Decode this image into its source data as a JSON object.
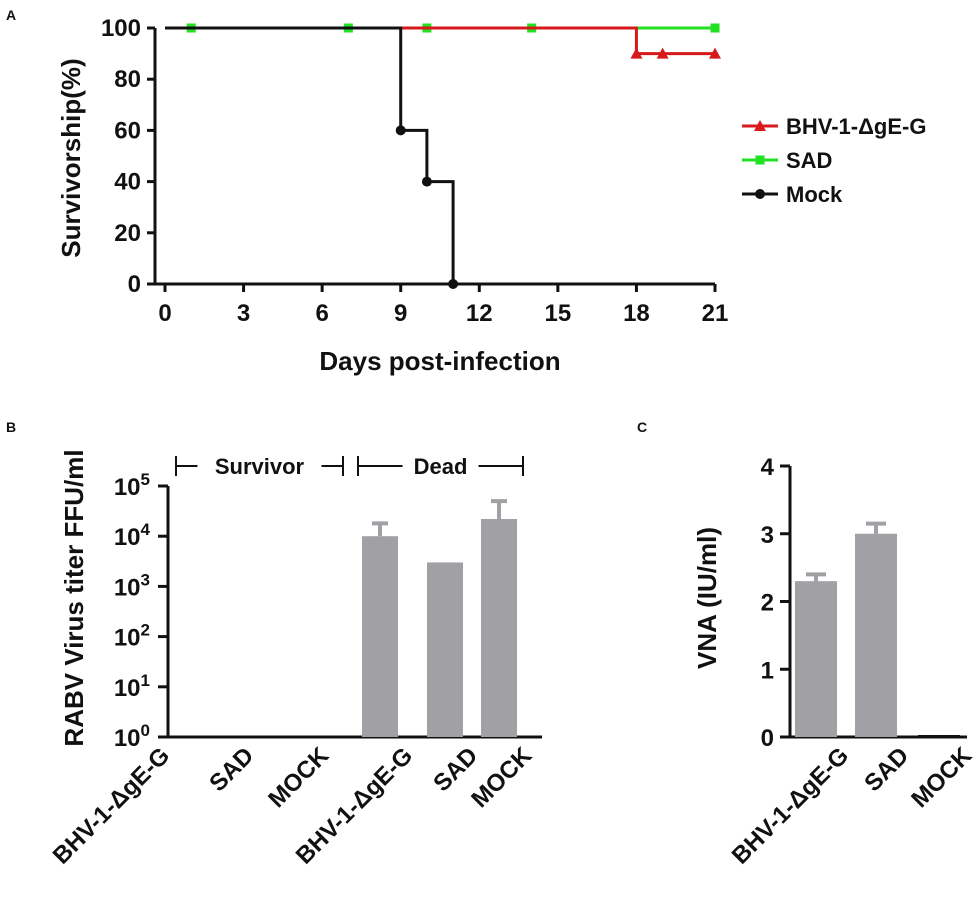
{
  "chart_data": [
    {
      "panel": "A",
      "type": "line",
      "step": true,
      "title": "",
      "xlabel": "Days post-infection",
      "ylabel": "Survivorship(%)",
      "xlim": [
        0,
        21
      ],
      "ylim": [
        0,
        100
      ],
      "xticks": [
        "0",
        "3",
        "6",
        "9",
        "12",
        "15",
        "18",
        "21"
      ],
      "yticks": [
        "0",
        "20",
        "40",
        "60",
        "80",
        "100"
      ],
      "series": [
        {
          "name": "BHV-1-ΔgE-G",
          "color": "#d7191c",
          "marker": "triangle",
          "x": [
            0,
            18,
            19,
            21
          ],
          "y": [
            100,
            90,
            90,
            90
          ]
        },
        {
          "name": "SAD",
          "color": "#22e022",
          "marker": "square",
          "x": [
            0,
            1,
            7,
            10,
            14,
            21
          ],
          "y": [
            100,
            100,
            100,
            100,
            100,
            100
          ]
        },
        {
          "name": "Mock",
          "color": "#111111",
          "marker": "circle",
          "x": [
            0,
            9,
            10,
            11
          ],
          "y": [
            100,
            60,
            40,
            0
          ]
        }
      ],
      "legend": [
        "BHV-1-ΔgE-G",
        "SAD",
        "Mock"
      ],
      "legend_position": "right"
    },
    {
      "panel": "B",
      "type": "bar",
      "scale": "log",
      "ylabel": "RABV Virus titer FFU/ml",
      "ylim": [
        1,
        100000
      ],
      "ytick_base": "10",
      "ytick_exponents": [
        "0",
        "1",
        "2",
        "3",
        "4",
        "5"
      ],
      "groups": [
        {
          "label": "Survivor",
          "categories": [
            "BHV-1-ΔgE-G",
            "SAD",
            "MOCK"
          ],
          "values": [
            null,
            null,
            null
          ],
          "errors": [
            null,
            null,
            null
          ]
        },
        {
          "label": "Dead",
          "categories": [
            "BHV-1-ΔgE-G",
            "SAD",
            "MOCK"
          ],
          "values": [
            10000,
            3000,
            22000
          ],
          "errors": [
            18000,
            null,
            50000
          ]
        }
      ],
      "bar_color": "#a0a0a5"
    },
    {
      "panel": "C",
      "type": "bar",
      "ylabel": "VNA (IU/ml)",
      "ylim": [
        0,
        4
      ],
      "yticks": [
        "0",
        "1",
        "2",
        "3",
        "4"
      ],
      "categories": [
        "BHV-1-ΔgE-G",
        "SAD",
        "MOCK"
      ],
      "values": [
        2.3,
        3.0,
        0.0
      ],
      "errors": [
        0.1,
        0.15,
        0
      ],
      "bar_color": "#a0a0a5"
    }
  ]
}
